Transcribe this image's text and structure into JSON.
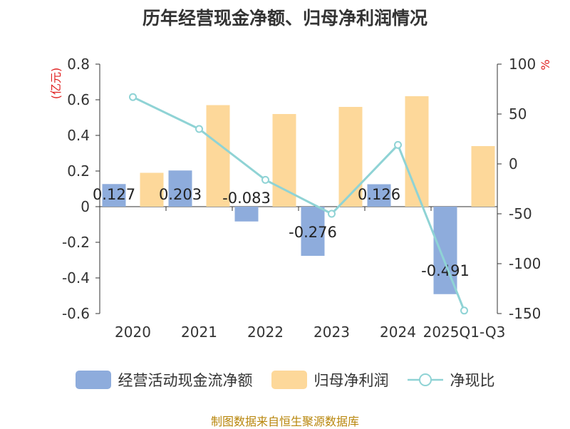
{
  "chart_data": {
    "type": "bar+line",
    "title": "历年经营现金净额、归母净利润情况",
    "categories": [
      "2020",
      "2021",
      "2022",
      "2023",
      "2024",
      "2025Q1-Q3"
    ],
    "series": [
      {
        "name": "经营活动现金流净额",
        "type": "bar",
        "axis": "left",
        "color": "#8eacdc",
        "values": [
          0.127,
          0.203,
          -0.083,
          -0.276,
          0.126,
          -0.491
        ]
      },
      {
        "name": "归母净利润",
        "type": "bar",
        "axis": "left",
        "color": "#fdd89a",
        "values": [
          0.19,
          0.57,
          0.52,
          0.56,
          0.62,
          0.34
        ]
      },
      {
        "name": "净现比",
        "type": "line",
        "axis": "right",
        "color": "#8fd3d5",
        "values": [
          67,
          35,
          -16,
          -50,
          19,
          -147
        ]
      }
    ],
    "left_axis": {
      "label": "(亿元)",
      "min": -0.6,
      "max": 0.8,
      "step": 0.2,
      "ticks": [
        "0.8",
        "0.6",
        "0.4",
        "0.2",
        "0",
        "-0.2",
        "-0.4",
        "-0.6"
      ]
    },
    "right_axis": {
      "label": "%",
      "min": -150,
      "max": 100,
      "step": 50,
      "ticks": [
        "100",
        "50",
        "0",
        "-50",
        "-100",
        "-150"
      ]
    },
    "bar_labels": [
      "0.127",
      "0.203",
      "-0.083",
      "-0.276",
      "0.126",
      "-0.491"
    ],
    "legend_position": "bottom",
    "axis_label_color": "#e02020"
  },
  "legend": [
    {
      "label": "经营活动现金流净额"
    },
    {
      "label": "归母净利润"
    },
    {
      "label": "净现比"
    }
  ],
  "footer": "制图数据来自恒生聚源数据库"
}
